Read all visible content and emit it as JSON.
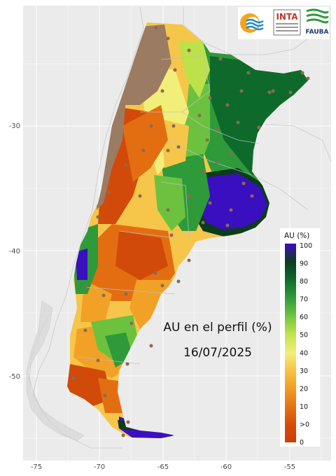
{
  "map": {
    "title": "AU en el perfil (%)",
    "date": "16/07/2025",
    "x_ticks": [
      "-75",
      "-70",
      "-65",
      "-60",
      "-55"
    ],
    "y_ticks": [
      "-30",
      "-40",
      "-50"
    ],
    "background": "#ebebeb"
  },
  "legend": {
    "title": "AU (%)",
    "labels": [
      "100",
      "90",
      "80",
      "70",
      "60",
      "50",
      "40",
      "30",
      "20",
      "10",
      ">0",
      "0"
    ],
    "colors": [
      "#3a0fbf",
      "#0d3b1e",
      "#0e6a2b",
      "#2e9a3a",
      "#6cc23e",
      "#bde14a",
      "#f2ee7a",
      "#f6c64a",
      "#f2a127",
      "#e36e12",
      "#d24a0a",
      "#c8400a"
    ]
  },
  "logos": {
    "inta": "INTA",
    "fauba": "FAUBA"
  }
}
